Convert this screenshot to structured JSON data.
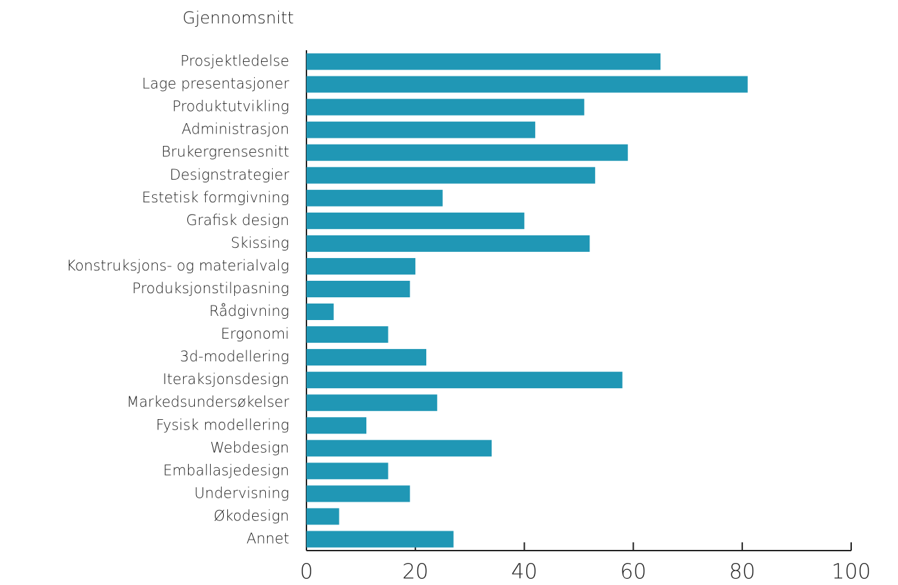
{
  "chart_data": {
    "type": "bar",
    "orientation": "horizontal",
    "title": "Gjennomsnitt",
    "categories": [
      "Prosjektledelse",
      "Lage presentasjoner",
      "Produktutvikling",
      "Administrasjon",
      "Brukergrensesnitt",
      "Designstrategier",
      "Estetisk formgivning",
      "Grafisk design",
      "Skissing",
      "Konstruksjons- og materialvalg",
      "Produksjonstilpasning",
      "Rådgivning",
      "Ergonomi",
      "3d-modellering",
      "Iteraksjonsdesign",
      "Markedsundersøkelser",
      "Fysisk modellering",
      "Webdesign",
      "Emballasjedesign",
      "Undervisning",
      "Økodesign",
      "Annet"
    ],
    "values": [
      65,
      81,
      51,
      42,
      59,
      53,
      25,
      40,
      52,
      20,
      19,
      5,
      15,
      22,
      58,
      24,
      11,
      34,
      15,
      19,
      6,
      27
    ],
    "color": "#2097b5",
    "xlim": [
      0,
      100
    ],
    "xticks": [
      0,
      20,
      40,
      60,
      80,
      100
    ],
    "grid": false
  }
}
